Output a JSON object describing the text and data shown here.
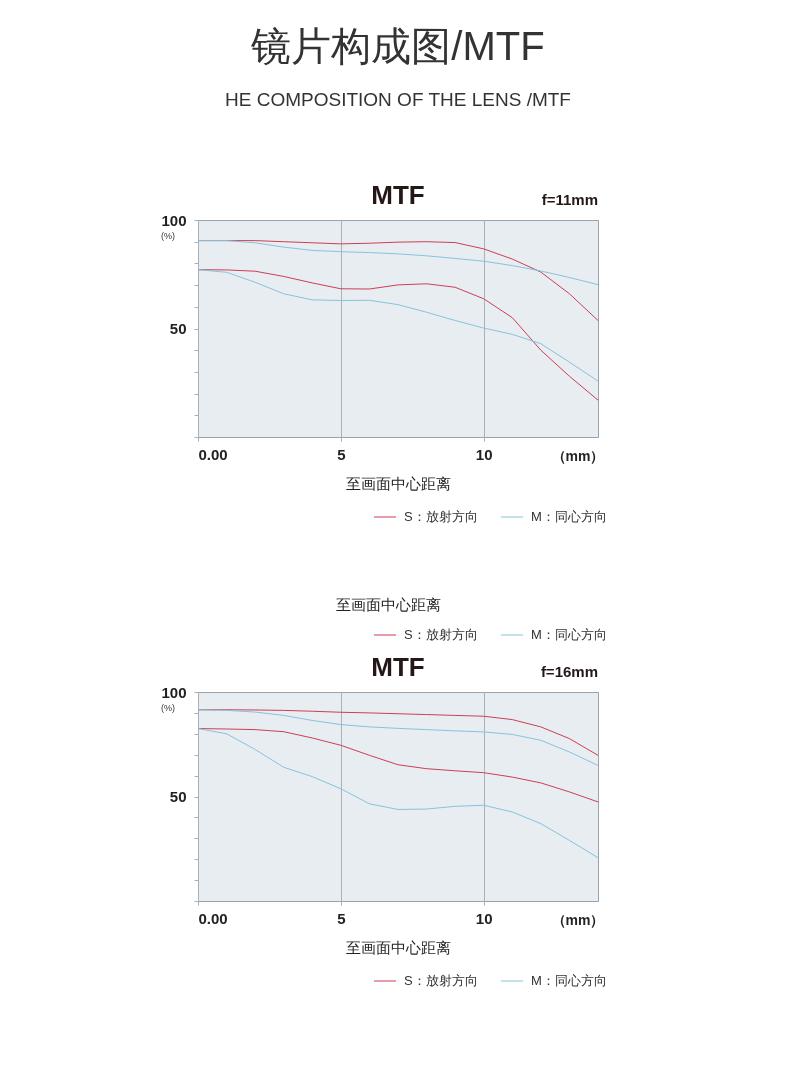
{
  "chart_data": [
    {
      "type": "line",
      "title": "MTF",
      "subtitle": "f=11mm",
      "xlabel": "至画面中心距离",
      "annotations": [
        "镜片构成图/MTF",
        "HE COMPOSITION OF THE LENS /MTF",
        "(%)",
        "（mm）"
      ],
      "x": [
        0,
        1,
        2,
        3,
        4,
        5,
        6,
        7,
        8,
        9,
        10,
        11,
        12,
        13,
        14
      ],
      "series": [
        {
          "name": "S：放射方向",
          "color": "#cc3f55",
          "values": [
            90.5,
            90.5,
            90.5,
            90,
            89.5,
            89,
            89.3,
            89.8,
            90,
            89.6,
            86.7,
            82,
            76,
            66,
            53.7
          ]
        },
        {
          "name": "M：同心方向",
          "color": "#86c3de",
          "values": [
            90.5,
            90.5,
            89.5,
            87.5,
            86,
            85.4,
            85,
            84.4,
            83.5,
            82.3,
            81,
            79,
            76.5,
            73.5,
            70.2
          ]
        },
        {
          "name": "S：放射方向",
          "color": "#cc3f55",
          "values": [
            77.1,
            77,
            76.4,
            74,
            71,
            68.3,
            68.2,
            70.1,
            70.6,
            69,
            63.7,
            55,
            40,
            28,
            17
          ]
        },
        {
          "name": "M：同心方向",
          "color": "#86c3de",
          "values": [
            77.1,
            75.9,
            71.3,
            66,
            63.2,
            62.9,
            63,
            61,
            57.5,
            53.7,
            50.2,
            47.3,
            43,
            34.5,
            25.8
          ]
        }
      ],
      "xlim": [
        0,
        14
      ],
      "ylim": [
        0,
        100
      ],
      "xticks": [
        {
          "value": 0,
          "label": "0.00"
        },
        5,
        10
      ],
      "yticks": [
        {
          "value": 0,
          "label": null
        },
        {
          "value": 10,
          "label": null
        },
        {
          "value": 20,
          "label": null
        },
        {
          "value": 30,
          "label": null
        },
        {
          "value": 40,
          "label": null
        },
        50,
        {
          "value": 60,
          "label": null
        },
        {
          "value": 70,
          "label": null
        },
        {
          "value": 80,
          "label": null
        },
        {
          "value": 90,
          "label": null
        },
        {
          "value": 100,
          "label": "100"
        }
      ],
      "grid": "x",
      "legend": "bottom",
      "marker": "none",
      "line_style": "solid"
    },
    {
      "type": "line",
      "title": "MTF",
      "subtitle": "f=16mm",
      "xlabel": "至画面中心距离",
      "annotations": [
        "(%)",
        "（mm）"
      ],
      "x": [
        0,
        1,
        2,
        3,
        4,
        5,
        6,
        7,
        8,
        9,
        10,
        11,
        12,
        13,
        14
      ],
      "series": [
        {
          "name": "S：放射方向",
          "color": "#cc3f55",
          "values": [
            91.5,
            91.5,
            91.4,
            91.2,
            90.8,
            90.3,
            90,
            89.6,
            89.2,
            88.8,
            88.4,
            86.8,
            83.3,
            77.7,
            69.7
          ]
        },
        {
          "name": "M：同心方向",
          "color": "#86c3de",
          "values": [
            91.5,
            91.2,
            90.4,
            88.8,
            86.4,
            84.4,
            83.3,
            82.6,
            82,
            81.4,
            80.9,
            79.7,
            76.9,
            71.3,
            64.9
          ]
        },
        {
          "name": "S：放射方向",
          "color": "#cc3f55",
          "values": [
            82.5,
            82.3,
            82,
            81,
            78,
            74.5,
            69.7,
            65.2,
            63.3,
            62.3,
            61.4,
            59.3,
            56.5,
            52.2,
            47.4
          ]
        },
        {
          "name": "M：同心方向",
          "color": "#86c3de",
          "values": [
            82.5,
            80,
            72.5,
            64,
            59.5,
            53.7,
            46.5,
            43.8,
            44,
            45.3,
            45.8,
            42.6,
            37,
            29,
            20.7
          ]
        }
      ],
      "xlim": [
        0,
        14
      ],
      "ylim": [
        0,
        100
      ],
      "xticks": [
        {
          "value": 0,
          "label": "0.00"
        },
        5,
        10
      ],
      "yticks": [
        {
          "value": 0,
          "label": null
        },
        {
          "value": 10,
          "label": null
        },
        {
          "value": 20,
          "label": null
        },
        {
          "value": 30,
          "label": null
        },
        {
          "value": 40,
          "label": null
        },
        50,
        {
          "value": 60,
          "label": null
        },
        {
          "value": 70,
          "label": null
        },
        {
          "value": 80,
          "label": null
        },
        {
          "value": 90,
          "label": null
        },
        {
          "value": 100,
          "label": "100"
        }
      ],
      "grid": "x",
      "legend": "bottom",
      "marker": "none",
      "line_style": "solid"
    }
  ]
}
